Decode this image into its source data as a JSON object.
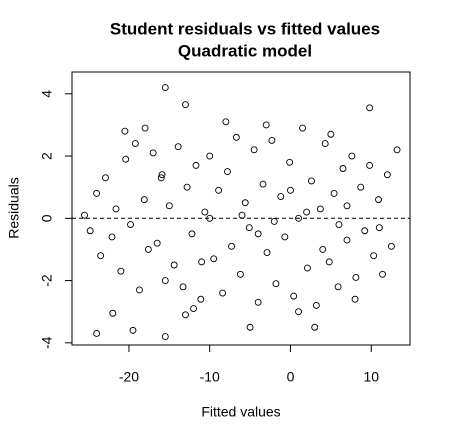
{
  "chart_data": {
    "type": "scatter",
    "title": "Student residuals vs fitted values",
    "subtitle": "Quadratic model",
    "xlabel": "Fitted values",
    "ylabel": "Residuals",
    "color": "#000000",
    "hline": 0,
    "xlim": [
      -27.05,
      14.8
    ],
    "ylim": [
      -4.07,
      4.7
    ],
    "xticks": [
      -20,
      -10,
      0,
      10
    ],
    "yticks": [
      -4,
      -2,
      0,
      2,
      4
    ],
    "x": [
      -25.5,
      -24.8,
      -24.0,
      -23.5,
      -22.9,
      -22.1,
      -21.6,
      -21.0,
      -20.4,
      -19.8,
      -19.2,
      -18.7,
      -18.1,
      -17.6,
      -17.0,
      -16.5,
      -15.9,
      -15.5,
      -15.0,
      -14.4,
      -13.9,
      -13.3,
      -12.8,
      -12.2,
      -11.7,
      -11.1,
      -10.6,
      -10.0,
      -9.5,
      -8.9,
      -8.4,
      -7.8,
      -7.3,
      -6.7,
      -6.2,
      -5.6,
      -5.1,
      -4.5,
      -4.0,
      -3.4,
      -2.9,
      -2.3,
      -1.8,
      -1.2,
      -0.7,
      -0.1,
      0.4,
      1.0,
      1.5,
      2.1,
      2.6,
      3.2,
      3.7,
      4.3,
      4.8,
      5.4,
      5.9,
      6.5,
      7.0,
      7.6,
      8.1,
      8.7,
      9.2,
      9.8,
      10.3,
      10.9,
      11.4,
      12.0,
      12.5,
      13.2,
      -24.0,
      -22.0,
      -19.5,
      -15.5,
      -13.0,
      -5.0,
      3.0,
      -15.5,
      -13.0,
      9.8,
      -20.5,
      -18.0,
      -12.0,
      -8.0,
      -3.0,
      1.0,
      5.0,
      8.0,
      -10.0,
      -6.0,
      -2.0,
      2.0,
      6.0,
      -16.0,
      -11.0,
      -4.0,
      0.0,
      4.0,
      7.0,
      11.0
    ],
    "y": [
      0.1,
      -0.4,
      0.8,
      -1.2,
      1.3,
      -0.6,
      0.3,
      -1.7,
      1.9,
      -0.2,
      2.4,
      -2.3,
      0.6,
      -1.0,
      2.1,
      -0.8,
      1.4,
      -2.0,
      0.4,
      -1.5,
      2.3,
      -2.2,
      1.0,
      -0.5,
      1.7,
      -2.6,
      0.2,
      2.0,
      -1.3,
      0.9,
      -2.4,
      1.5,
      -0.9,
      2.6,
      -1.8,
      0.5,
      -0.3,
      2.2,
      -2.7,
      1.1,
      -1.1,
      2.5,
      -2.1,
      0.7,
      -0.6,
      1.8,
      -2.5,
      0.0,
      2.9,
      -1.6,
      1.2,
      -2.8,
      0.3,
      2.4,
      -1.4,
      0.8,
      -2.2,
      1.6,
      -0.7,
      2.0,
      -1.9,
      1.0,
      -0.4,
      1.7,
      -1.2,
      0.6,
      -1.8,
      1.4,
      -0.9,
      2.2,
      -3.7,
      -3.05,
      -3.6,
      4.2,
      3.65,
      -3.5,
      -3.5,
      -3.8,
      -3.1,
      3.55,
      2.8,
      2.9,
      -2.9,
      3.1,
      3.0,
      -3.0,
      2.7,
      -2.6,
      0.0,
      0.1,
      -0.1,
      0.2,
      -0.2,
      1.3,
      -1.4,
      -0.5,
      0.9,
      -1.0,
      0.4,
      -0.3
    ]
  }
}
